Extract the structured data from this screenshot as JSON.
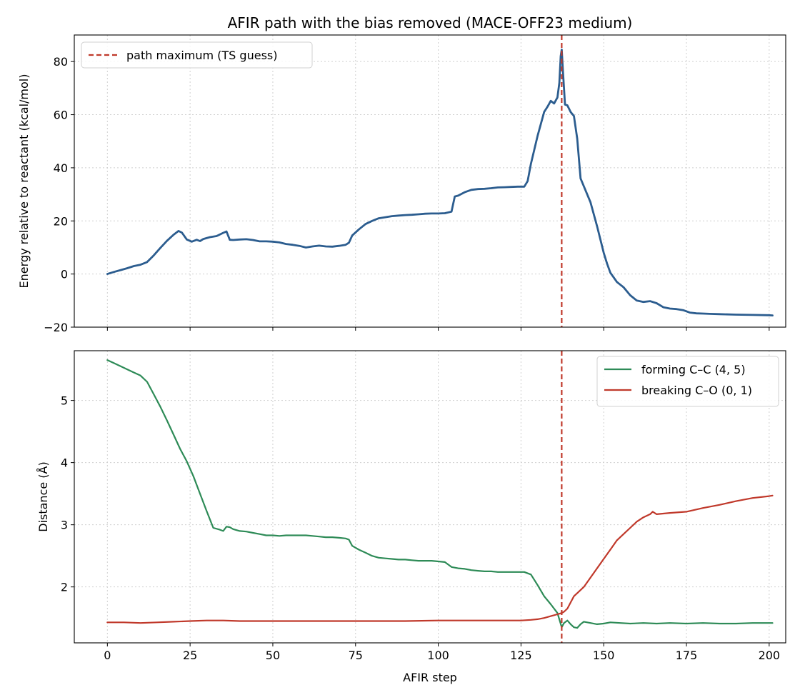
{
  "chart_data": [
    {
      "type": "line",
      "title": "AFIR path with the bias removed (MACE-OFF23 medium)",
      "xlabel": "",
      "ylabel": "Energy relative to reactant (kcal/mol)",
      "xlim": [
        -10,
        205
      ],
      "ylim": [
        -20,
        90
      ],
      "xticks": [
        0,
        25,
        50,
        75,
        100,
        125,
        150,
        175,
        200
      ],
      "yticks": [
        -20,
        0,
        20,
        40,
        60,
        80
      ],
      "ytick_labels": [
        "−20",
        "0",
        "20",
        "40",
        "60",
        "80"
      ],
      "grid": true,
      "legend": "top-left",
      "vline": {
        "x": 137.3,
        "name": "path maximum (TS guess)",
        "color": "#c0392b",
        "style": "dashed"
      },
      "series": [
        {
          "color": "#2c5d8f",
          "x": [
            0,
            2,
            4,
            6,
            8,
            10,
            12,
            14,
            16,
            18,
            20,
            21.5,
            22.5,
            24,
            25.5,
            27,
            28,
            29,
            31,
            33,
            35,
            36,
            37,
            38,
            40,
            42,
            44,
            46,
            48,
            50,
            52,
            54,
            56,
            58,
            60,
            62,
            64,
            66,
            68,
            70,
            72,
            73,
            74,
            76,
            78,
            80,
            82,
            84,
            86,
            88,
            90,
            92,
            94,
            96,
            98,
            100,
            102,
            104,
            105,
            106,
            108,
            110,
            112,
            114,
            116,
            118,
            120,
            122,
            124,
            126,
            127,
            128,
            130,
            132,
            133,
            134,
            135,
            136,
            136.6,
            137,
            137.3,
            137.7,
            138.3,
            139,
            140,
            141,
            142,
            143,
            144,
            146,
            148,
            150,
            151,
            152,
            154,
            156,
            158,
            160,
            162,
            164,
            166,
            168,
            170,
            172,
            174,
            176,
            178,
            180,
            182,
            185,
            190,
            195,
            200,
            201
          ],
          "values": [
            0,
            0.8,
            1.5,
            2.2,
            3.0,
            3.5,
            4.5,
            7.0,
            9.8,
            12.5,
            14.8,
            16.2,
            15.6,
            13.0,
            12.2,
            12.9,
            12.4,
            13.2,
            13.9,
            14.3,
            15.5,
            16.0,
            12.9,
            12.8,
            13.0,
            13.1,
            12.8,
            12.3,
            12.3,
            12.2,
            11.9,
            11.3,
            11.0,
            10.6,
            10.0,
            10.4,
            10.7,
            10.4,
            10.3,
            10.6,
            11.0,
            11.8,
            14.5,
            16.8,
            18.8,
            20.0,
            21.0,
            21.4,
            21.8,
            22.0,
            22.2,
            22.3,
            22.5,
            22.7,
            22.8,
            22.8,
            22.9,
            23.5,
            29.2,
            29.5,
            30.8,
            31.7,
            32.0,
            32.1,
            32.3,
            32.6,
            32.7,
            32.8,
            32.9,
            32.9,
            35.0,
            41.5,
            52.0,
            61.0,
            63.0,
            65.2,
            64.2,
            66.5,
            72.0,
            82.0,
            84.5,
            76.0,
            63.8,
            63.5,
            61.0,
            59.5,
            51.0,
            36.0,
            33.0,
            27.0,
            18.0,
            8.0,
            4.0,
            0.5,
            -3.0,
            -5.0,
            -8.0,
            -10.0,
            -10.5,
            -10.2,
            -11.0,
            -12.5,
            -13.0,
            -13.2,
            -13.6,
            -14.5,
            -14.8,
            -14.9,
            -15.0,
            -15.1,
            -15.3,
            -15.4,
            -15.5,
            -15.6
          ]
        }
      ]
    },
    {
      "type": "line",
      "title": "",
      "xlabel": "AFIR step",
      "ylabel": "Distance (Å)",
      "xlim": [
        -10,
        205
      ],
      "ylim": [
        1.1,
        5.8
      ],
      "xticks": [
        0,
        25,
        50,
        75,
        100,
        125,
        150,
        175,
        200
      ],
      "xtick_labels": [
        "0",
        "25",
        "50",
        "75",
        "100",
        "125",
        "150",
        "175",
        "200"
      ],
      "yticks": [
        2,
        3,
        4,
        5
      ],
      "grid": true,
      "legend": "top-right",
      "vline": {
        "x": 137.3,
        "color": "#c0392b",
        "style": "dashed"
      },
      "series": [
        {
          "name": "forming C–C (4, 5)",
          "color": "#2e8b57",
          "x": [
            0,
            2,
            4,
            6,
            8,
            10,
            12,
            14,
            16,
            18,
            20,
            22,
            24,
            26,
            28,
            30,
            32,
            34,
            35,
            36,
            37,
            38,
            40,
            42,
            44,
            46,
            48,
            50,
            52,
            54,
            56,
            58,
            60,
            62,
            64,
            66,
            68,
            70,
            72,
            73,
            74,
            76,
            78,
            80,
            82,
            84,
            86,
            88,
            90,
            92,
            94,
            96,
            98,
            100,
            102,
            104,
            105,
            106,
            108,
            110,
            112,
            114,
            116,
            118,
            120,
            122,
            124,
            126,
            128,
            130,
            132,
            134,
            136,
            137.3,
            138,
            139,
            140,
            141,
            142,
            143,
            144,
            146,
            148,
            150,
            152,
            155,
            158,
            162,
            166,
            170,
            175,
            180,
            185,
            190,
            195,
            200,
            201
          ],
          "values": [
            5.65,
            5.6,
            5.55,
            5.5,
            5.45,
            5.4,
            5.3,
            5.1,
            4.9,
            4.68,
            4.45,
            4.22,
            4.02,
            3.78,
            3.5,
            3.22,
            2.95,
            2.92,
            2.9,
            2.97,
            2.96,
            2.93,
            2.9,
            2.89,
            2.87,
            2.85,
            2.83,
            2.83,
            2.82,
            2.83,
            2.83,
            2.83,
            2.83,
            2.82,
            2.81,
            2.8,
            2.8,
            2.79,
            2.78,
            2.76,
            2.66,
            2.6,
            2.55,
            2.5,
            2.47,
            2.46,
            2.45,
            2.44,
            2.44,
            2.43,
            2.42,
            2.42,
            2.42,
            2.41,
            2.4,
            2.32,
            2.31,
            2.3,
            2.29,
            2.27,
            2.26,
            2.25,
            2.25,
            2.24,
            2.24,
            2.24,
            2.24,
            2.24,
            2.2,
            2.03,
            1.85,
            1.72,
            1.58,
            1.35,
            1.42,
            1.46,
            1.4,
            1.35,
            1.34,
            1.4,
            1.44,
            1.42,
            1.4,
            1.41,
            1.43,
            1.42,
            1.41,
            1.42,
            1.41,
            1.42,
            1.41,
            1.42,
            1.41,
            1.41,
            1.42,
            1.42,
            1.42
          ]
        },
        {
          "name": "breaking C–O (0, 1)",
          "color": "#c0392b",
          "x": [
            0,
            5,
            10,
            15,
            20,
            25,
            30,
            35,
            40,
            50,
            60,
            70,
            80,
            90,
            100,
            110,
            120,
            125,
            128,
            130,
            132,
            134,
            136,
            137.3,
            138,
            139,
            140,
            141,
            142,
            144,
            146,
            148,
            150,
            152,
            154,
            156,
            158,
            160,
            162,
            164,
            164.8,
            166,
            170,
            175,
            180,
            185,
            190,
            195,
            200,
            201
          ],
          "values": [
            1.43,
            1.43,
            1.42,
            1.43,
            1.44,
            1.45,
            1.46,
            1.46,
            1.45,
            1.45,
            1.45,
            1.45,
            1.45,
            1.45,
            1.46,
            1.46,
            1.46,
            1.46,
            1.47,
            1.48,
            1.5,
            1.53,
            1.56,
            1.58,
            1.6,
            1.65,
            1.75,
            1.85,
            1.9,
            2.0,
            2.15,
            2.3,
            2.45,
            2.6,
            2.75,
            2.85,
            2.95,
            3.05,
            3.12,
            3.17,
            3.21,
            3.17,
            3.19,
            3.21,
            3.27,
            3.32,
            3.38,
            3.43,
            3.46,
            3.47
          ]
        }
      ]
    }
  ]
}
